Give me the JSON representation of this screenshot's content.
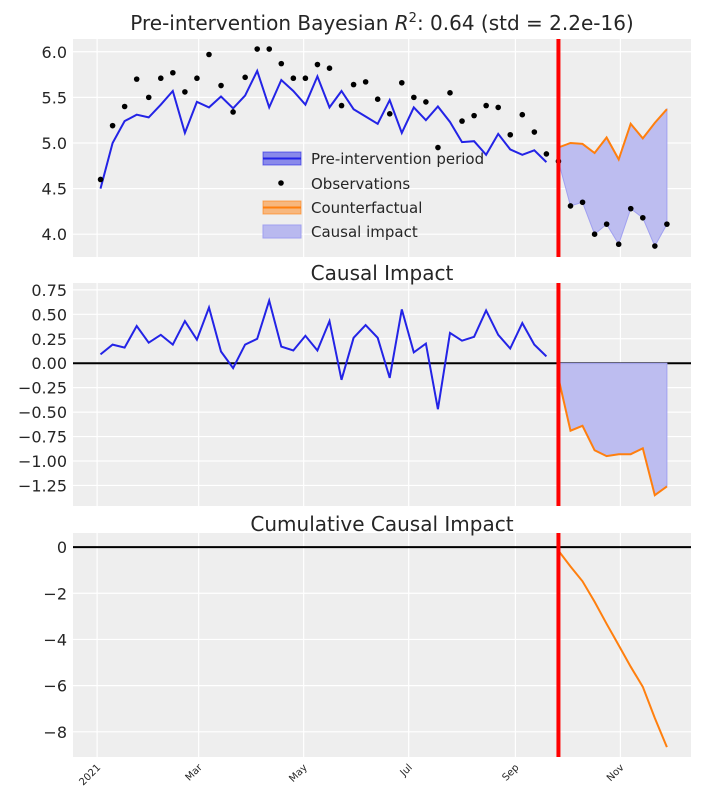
{
  "colors": {
    "background": "#eeeeee",
    "grid": "#ffffff",
    "prediction": "#2323e6",
    "counterfactual": "#ff7f0e",
    "intervention": "#ff0000",
    "impact_fill": "#b9b9ef",
    "observations": "#000000",
    "zero_line": "#000000"
  },
  "chart_data": [
    {
      "type": "line",
      "title_prefix": "Pre-intervention Bayesian ",
      "title_symbol": "R",
      "title_superscript": "2",
      "title_suffix": ": 0.64 (std = 2.2e-16)",
      "ylim": [
        3.75,
        6.14
      ],
      "yticks": [
        "4.0",
        "4.5",
        "5.0",
        "5.5",
        "6.0"
      ],
      "grid": true,
      "legend_placement": "center",
      "legend": [
        "Pre-intervention period",
        "Observations",
        "Counterfactual",
        "Causal impact"
      ],
      "pre_dates": [
        "2021-01-03",
        "2021-01-10",
        "2021-01-17",
        "2021-01-24",
        "2021-01-31",
        "2021-02-07",
        "2021-02-14",
        "2021-02-21",
        "2021-02-28",
        "2021-03-07",
        "2021-03-14",
        "2021-03-21",
        "2021-03-28",
        "2021-04-04",
        "2021-04-11",
        "2021-04-18",
        "2021-04-25",
        "2021-05-02",
        "2021-05-09",
        "2021-05-16",
        "2021-05-23",
        "2021-05-30",
        "2021-06-06",
        "2021-06-13",
        "2021-06-20",
        "2021-06-27",
        "2021-07-04",
        "2021-07-11",
        "2021-07-18",
        "2021-07-25",
        "2021-08-01",
        "2021-08-08",
        "2021-08-15",
        "2021-08-22",
        "2021-08-29",
        "2021-09-05",
        "2021-09-12",
        "2021-09-19"
      ],
      "post_dates": [
        "2021-09-26",
        "2021-10-03",
        "2021-10-10",
        "2021-10-17",
        "2021-10-24",
        "2021-10-31",
        "2021-11-07",
        "2021-11-14",
        "2021-11-21",
        "2021-11-28"
      ],
      "pre_prediction": [
        4.5,
        5.0,
        5.24,
        5.31,
        5.28,
        5.42,
        5.57,
        5.11,
        5.45,
        5.39,
        5.51,
        5.38,
        5.52,
        5.79,
        5.39,
        5.69,
        5.57,
        5.42,
        5.73,
        5.39,
        5.57,
        5.37,
        5.29,
        5.21,
        5.47,
        5.11,
        5.39,
        5.25,
        5.4,
        5.23,
        5.01,
        5.02,
        4.87,
        5.1,
        4.93,
        4.87,
        4.92,
        4.79
      ],
      "pre_observations": [
        4.6,
        5.19,
        5.4,
        5.7,
        5.5,
        5.71,
        5.77,
        5.56,
        5.71,
        5.97,
        5.63,
        5.34,
        5.72,
        6.03,
        6.03,
        5.87,
        5.71,
        5.71,
        5.86,
        5.82,
        5.41,
        5.64,
        5.67,
        5.48,
        5.32,
        5.66,
        5.5,
        5.45,
        4.95,
        5.55,
        5.24,
        5.3,
        5.41,
        5.39,
        5.09,
        5.31,
        5.12,
        4.88
      ],
      "post_observations": [
        4.8,
        4.31,
        4.35,
        4.0,
        4.11,
        3.89,
        4.28,
        4.18,
        3.87,
        4.11
      ],
      "counterfactual": [
        4.95,
        5.0,
        4.99,
        4.89,
        5.06,
        4.82,
        5.21,
        5.05,
        5.22,
        5.37
      ],
      "intervention_date": "2021-09-26"
    },
    {
      "type": "line",
      "title": "Causal Impact",
      "ylim": [
        -1.46,
        0.82
      ],
      "yticks": [
        "0.75",
        "0.50",
        "0.25",
        "0.00",
        "−0.25",
        "−0.50",
        "−0.75",
        "−1.00",
        "−1.25"
      ],
      "ytick_values": [
        0.75,
        0.5,
        0.25,
        0,
        -0.25,
        -0.5,
        -0.75,
        -1.0,
        -1.25
      ],
      "grid": true,
      "pre_impact": [
        0.09,
        0.19,
        0.16,
        0.38,
        0.21,
        0.29,
        0.19,
        0.43,
        0.24,
        0.57,
        0.12,
        -0.05,
        0.19,
        0.25,
        0.64,
        0.17,
        0.13,
        0.28,
        0.13,
        0.43,
        -0.17,
        0.26,
        0.39,
        0.26,
        -0.15,
        0.55,
        0.11,
        0.2,
        -0.47,
        0.31,
        0.23,
        0.27,
        0.54,
        0.29,
        0.15,
        0.41,
        0.19,
        0.07
      ],
      "post_impact": [
        -0.15,
        -0.69,
        -0.64,
        -0.89,
        -0.95,
        -0.93,
        -0.93,
        -0.87,
        -1.35,
        -1.26
      ]
    },
    {
      "type": "line",
      "title": "Cumulative Causal Impact",
      "ylim": [
        -9.09,
        0.61
      ],
      "yticks": [
        "0",
        "−2",
        "−4",
        "−6",
        "−8"
      ],
      "ytick_values": [
        0,
        -2,
        -4,
        -6,
        -8
      ],
      "grid": true,
      "post_cumulative": [
        -0.15,
        -0.84,
        -1.48,
        -2.37,
        -3.32,
        -4.25,
        -5.18,
        -6.05,
        -7.4,
        -8.66
      ]
    }
  ],
  "x_axis": {
    "xlim": [
      "2020-12-18",
      "2021-12-12"
    ],
    "ticks": [
      {
        "date": "2021-01-01",
        "label": "2021"
      },
      {
        "date": "2021-03-01",
        "label": "Mar"
      },
      {
        "date": "2021-05-01",
        "label": "May"
      },
      {
        "date": "2021-07-01",
        "label": "Jul"
      },
      {
        "date": "2021-09-01",
        "label": "Sep"
      },
      {
        "date": "2021-11-01",
        "label": "Nov"
      }
    ]
  }
}
